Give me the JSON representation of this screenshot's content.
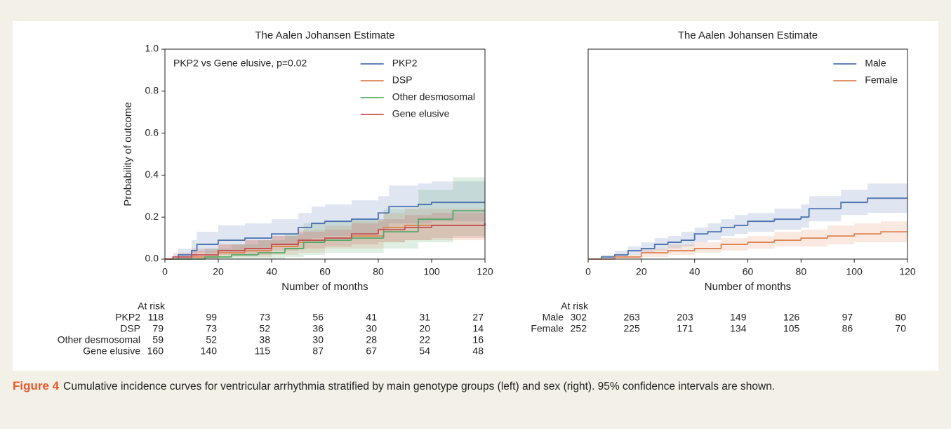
{
  "chart_data": [
    {
      "type": "step",
      "title": "The Aalen Johansen Estimate",
      "xlabel": "Number of months",
      "ylabel": "Probability of outcome",
      "annotation": "PKP2 vs Gene elusive, p=0.02",
      "legend": "upper right",
      "xlim": [
        0,
        120
      ],
      "xticks": [
        0,
        20,
        40,
        60,
        80,
        100,
        120
      ],
      "ylim": [
        0,
        1
      ],
      "yticks": [
        {
          "value": 0,
          "label": "0.0"
        },
        {
          "value": 0.2,
          "label": "0.2"
        },
        {
          "value": 0.4,
          "label": "0.4"
        },
        {
          "value": 0.6,
          "label": "0.6"
        },
        {
          "value": 0.8,
          "label": "0.8"
        },
        {
          "value": 1,
          "label": "1.0"
        }
      ],
      "series": [
        {
          "name": "PKP2",
          "color": "#4c72b0",
          "x": [
            0,
            5,
            10,
            12,
            20,
            30,
            40,
            50,
            55,
            60,
            70,
            80,
            84,
            95,
            100,
            120
          ],
          "values": [
            0,
            0.02,
            0.04,
            0.07,
            0.09,
            0.1,
            0.12,
            0.15,
            0.17,
            0.18,
            0.19,
            0.22,
            0.25,
            0.26,
            0.27,
            0.27
          ],
          "lower": [
            0,
            0,
            0.01,
            0.03,
            0.04,
            0.05,
            0.07,
            0.09,
            0.1,
            0.11,
            0.12,
            0.14,
            0.17,
            0.17,
            0.18,
            0.18
          ],
          "upper": [
            0,
            0.05,
            0.09,
            0.13,
            0.16,
            0.17,
            0.19,
            0.22,
            0.25,
            0.26,
            0.28,
            0.3,
            0.35,
            0.36,
            0.37,
            0.37
          ]
        },
        {
          "name": "DSP",
          "color": "#dd8452",
          "x": [
            0,
            10,
            20,
            30,
            40,
            50,
            60,
            70,
            82,
            90,
            120
          ],
          "values": [
            0,
            0.01,
            0.03,
            0.04,
            0.06,
            0.08,
            0.1,
            0.11,
            0.15,
            0.16,
            0.17
          ],
          "lower": [
            0,
            0,
            0.01,
            0.01,
            0.02,
            0.03,
            0.05,
            0.05,
            0.08,
            0.09,
            0.09
          ],
          "upper": [
            0,
            0.04,
            0.07,
            0.09,
            0.11,
            0.14,
            0.16,
            0.18,
            0.22,
            0.24,
            0.26
          ]
        },
        {
          "name": "Other desmosomal",
          "color": "#55a868",
          "x": [
            0,
            15,
            25,
            35,
            45,
            52,
            60,
            70,
            82,
            95,
            108,
            120
          ],
          "values": [
            0,
            0.01,
            0.02,
            0.03,
            0.05,
            0.08,
            0.09,
            0.1,
            0.13,
            0.19,
            0.23,
            0.23
          ],
          "lower": [
            0,
            0,
            0,
            0,
            0.01,
            0.02,
            0.03,
            0.03,
            0.05,
            0.08,
            0.11,
            0.11
          ],
          "upper": [
            0,
            0.05,
            0.07,
            0.09,
            0.12,
            0.17,
            0.18,
            0.19,
            0.24,
            0.33,
            0.39,
            0.39
          ]
        },
        {
          "name": "Gene elusive",
          "color": "#c44e52",
          "x": [
            0,
            3,
            10,
            20,
            30,
            40,
            50,
            60,
            70,
            80,
            90,
            100,
            120
          ],
          "values": [
            0,
            0.01,
            0.02,
            0.04,
            0.05,
            0.07,
            0.09,
            0.1,
            0.12,
            0.14,
            0.15,
            0.16,
            0.17
          ],
          "lower": [
            0,
            0,
            0,
            0.02,
            0.02,
            0.04,
            0.05,
            0.06,
            0.07,
            0.08,
            0.09,
            0.1,
            0.1
          ],
          "upper": [
            0,
            0.03,
            0.05,
            0.07,
            0.09,
            0.11,
            0.13,
            0.14,
            0.17,
            0.19,
            0.21,
            0.22,
            0.23
          ]
        }
      ],
      "at_risk": {
        "title": "At risk",
        "rows": [
          {
            "name": "PKP2",
            "values": [
              118,
              99,
              73,
              56,
              41,
              31,
              27
            ]
          },
          {
            "name": "DSP",
            "values": [
              79,
              73,
              52,
              36,
              30,
              20,
              14
            ]
          },
          {
            "name": "Other desmosomal",
            "values": [
              59,
              52,
              38,
              30,
              28,
              22,
              16
            ]
          },
          {
            "name": "Gene elusive",
            "values": [
              160,
              140,
              115,
              87,
              67,
              54,
              48
            ]
          }
        ]
      }
    },
    {
      "type": "step",
      "title": "The Aalen Johansen Estimate",
      "xlabel": "Number of months",
      "legend": "upper right",
      "xlim": [
        0,
        120
      ],
      "xticks": [
        0,
        20,
        40,
        60,
        80,
        100,
        120
      ],
      "ylim": [
        0,
        1
      ],
      "series": [
        {
          "name": "Male",
          "color": "#4c72b0",
          "x": [
            0,
            5,
            10,
            15,
            20,
            25,
            30,
            35,
            40,
            45,
            50,
            55,
            60,
            70,
            80,
            83,
            95,
            105,
            120
          ],
          "values": [
            0,
            0.01,
            0.02,
            0.04,
            0.05,
            0.07,
            0.08,
            0.09,
            0.12,
            0.13,
            0.15,
            0.16,
            0.18,
            0.19,
            0.2,
            0.24,
            0.27,
            0.29,
            0.29
          ],
          "lower": [
            0,
            0,
            0.01,
            0.02,
            0.03,
            0.04,
            0.05,
            0.06,
            0.08,
            0.09,
            0.11,
            0.12,
            0.13,
            0.14,
            0.15,
            0.18,
            0.21,
            0.22,
            0.22
          ],
          "upper": [
            0,
            0.02,
            0.04,
            0.06,
            0.08,
            0.1,
            0.11,
            0.13,
            0.15,
            0.17,
            0.19,
            0.21,
            0.22,
            0.24,
            0.26,
            0.3,
            0.33,
            0.36,
            0.36
          ]
        },
        {
          "name": "Female",
          "color": "#dd8452",
          "x": [
            0,
            10,
            20,
            30,
            40,
            50,
            60,
            70,
            80,
            90,
            100,
            110,
            120
          ],
          "values": [
            0,
            0.01,
            0.03,
            0.04,
            0.05,
            0.07,
            0.08,
            0.09,
            0.1,
            0.11,
            0.12,
            0.13,
            0.13
          ],
          "lower": [
            0,
            0,
            0.01,
            0.02,
            0.03,
            0.04,
            0.05,
            0.06,
            0.06,
            0.07,
            0.08,
            0.08,
            0.08
          ],
          "upper": [
            0,
            0.02,
            0.05,
            0.07,
            0.08,
            0.1,
            0.11,
            0.13,
            0.14,
            0.16,
            0.17,
            0.18,
            0.18
          ]
        }
      ],
      "at_risk": {
        "title": "At risk",
        "rows": [
          {
            "name": "Male",
            "values": [
              302,
              263,
              203,
              149,
              126,
              97,
              80
            ]
          },
          {
            "name": "Female",
            "values": [
              252,
              225,
              171,
              134,
              105,
              86,
              70
            ]
          }
        ]
      }
    }
  ],
  "caption": {
    "label": "Figure 4",
    "text": "Cumulative incidence curves for ventricular arrhythmia stratified by main genotype groups (left) and sex (right). 95% confidence intervals are shown."
  }
}
